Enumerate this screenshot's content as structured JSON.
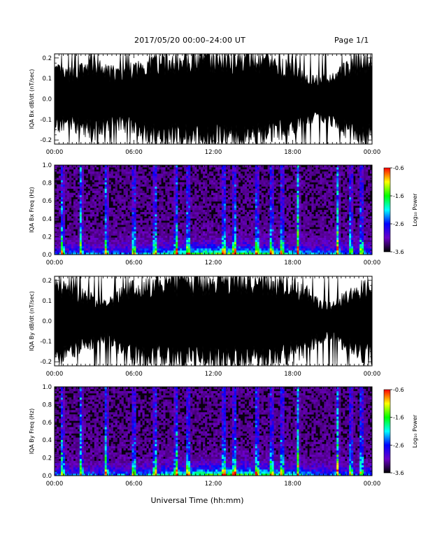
{
  "header": {
    "title": "2017/05/20  00:00–24:00 UT",
    "page": "Page 1/1"
  },
  "xlabel": "Universal Time (hh:mm)",
  "colorbar": {
    "label": "Log₁₀ Power",
    "ticks": [
      "-0.6",
      "-1.6",
      "-2.6",
      "-3.6"
    ],
    "stops": [
      "#ff0000",
      "#ffff00",
      "#00ff00",
      "#00ffff",
      "#0000ff",
      "#6a00c8",
      "#000000"
    ]
  },
  "chart_data": [
    {
      "type": "area",
      "ylabel": "IQA Bx dB/dt (nT/sec)",
      "x_ticks": [
        "00:00",
        "06:00",
        "12:00",
        "18:00",
        "00:00"
      ],
      "xlim": [
        0,
        24
      ],
      "ylim": [
        -0.22,
        0.22
      ],
      "y_ticks": [
        "0.2",
        "0.1",
        "0.0",
        "-0.1",
        "-0.2"
      ],
      "envelope_hours": [
        0,
        1,
        2,
        3,
        4,
        5,
        6,
        7,
        8,
        9,
        10,
        11,
        12,
        13,
        14,
        15,
        16,
        17,
        18,
        19,
        20,
        21,
        22,
        23,
        24
      ],
      "envelope_amplitude": [
        0.16,
        0.13,
        0.16,
        0.18,
        0.15,
        0.14,
        0.16,
        0.2,
        0.21,
        0.2,
        0.22,
        0.22,
        0.22,
        0.22,
        0.22,
        0.21,
        0.19,
        0.18,
        0.17,
        0.12,
        0.1,
        0.12,
        0.17,
        0.2,
        0.21
      ],
      "color": "#000000"
    },
    {
      "type": "heatmap",
      "ylabel": "IQA Bx Freq (Hz)",
      "x_ticks": [
        "00:00",
        "06:00",
        "12:00",
        "18:00",
        "00:00"
      ],
      "xlim": [
        0,
        24
      ],
      "ylim": [
        0,
        1.0
      ],
      "y_ticks": [
        "1.0",
        "0.8",
        "0.6",
        "0.4",
        "0.2",
        "0.0"
      ],
      "color_range": [
        -3.6,
        -0.6
      ],
      "bursts_hours": [
        0.6,
        2.0,
        3.9,
        6.0,
        7.6,
        9.2,
        10.1,
        12.8,
        13.6,
        15.3,
        16.4,
        17.2,
        18.4,
        21.4,
        22.4,
        23.2
      ]
    },
    {
      "type": "area",
      "ylabel": "IQA By dB/dt (nT/sec)",
      "x_ticks": [
        "00:00",
        "06:00",
        "12:00",
        "18:00",
        "00:00"
      ],
      "xlim": [
        0,
        24
      ],
      "ylim": [
        -0.22,
        0.22
      ],
      "y_ticks": [
        "0.2",
        "0.1",
        "0.0",
        "-0.1",
        "-0.2"
      ],
      "envelope_hours": [
        0,
        1,
        2,
        3,
        4,
        5,
        6,
        7,
        8,
        9,
        10,
        11,
        12,
        13,
        14,
        15,
        16,
        17,
        18,
        19,
        20,
        21,
        22,
        23,
        24
      ],
      "envelope_amplitude": [
        0.2,
        0.17,
        0.15,
        0.12,
        0.1,
        0.15,
        0.18,
        0.2,
        0.2,
        0.21,
        0.22,
        0.22,
        0.22,
        0.22,
        0.22,
        0.22,
        0.21,
        0.2,
        0.18,
        0.16,
        0.1,
        0.08,
        0.14,
        0.17,
        0.2
      ],
      "color": "#000000"
    },
    {
      "type": "heatmap",
      "ylabel": "IQA By Freq (Hz)",
      "x_ticks": [
        "00:00",
        "06:00",
        "12:00",
        "18:00",
        "00:00"
      ],
      "xlim": [
        0,
        24
      ],
      "ylim": [
        0,
        1.0
      ],
      "y_ticks": [
        "1.0",
        "0.8",
        "0.6",
        "0.4",
        "0.2",
        "0.0"
      ],
      "color_range": [
        -3.6,
        -0.6
      ],
      "bursts_hours": [
        0.6,
        2.0,
        3.9,
        6.0,
        7.6,
        9.2,
        10.1,
        12.8,
        13.6,
        15.3,
        16.4,
        17.2,
        18.4,
        21.4,
        22.4,
        23.2
      ]
    }
  ]
}
